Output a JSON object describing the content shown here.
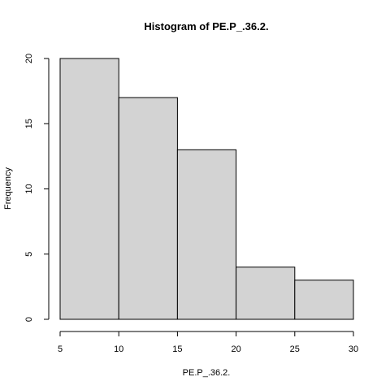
{
  "chart_data": {
    "type": "bar",
    "title": "Histogram of PE.P_.36.2.",
    "xlabel": "PE.P_.36.2.",
    "ylabel": "Frequency",
    "bins": [
      {
        "start": 5,
        "end": 10,
        "value": 20
      },
      {
        "start": 10,
        "end": 15,
        "value": 17
      },
      {
        "start": 15,
        "end": 20,
        "value": 13
      },
      {
        "start": 20,
        "end": 25,
        "value": 4
      },
      {
        "start": 25,
        "end": 30,
        "value": 3
      }
    ],
    "x_ticks": [
      5,
      10,
      15,
      20,
      25,
      30
    ],
    "y_ticks": [
      0,
      5,
      10,
      15,
      20
    ],
    "xlim": [
      5,
      30
    ],
    "ylim": [
      0,
      20
    ],
    "grid": false,
    "bar_color": "#d3d3d3",
    "border_color": "#000000"
  }
}
